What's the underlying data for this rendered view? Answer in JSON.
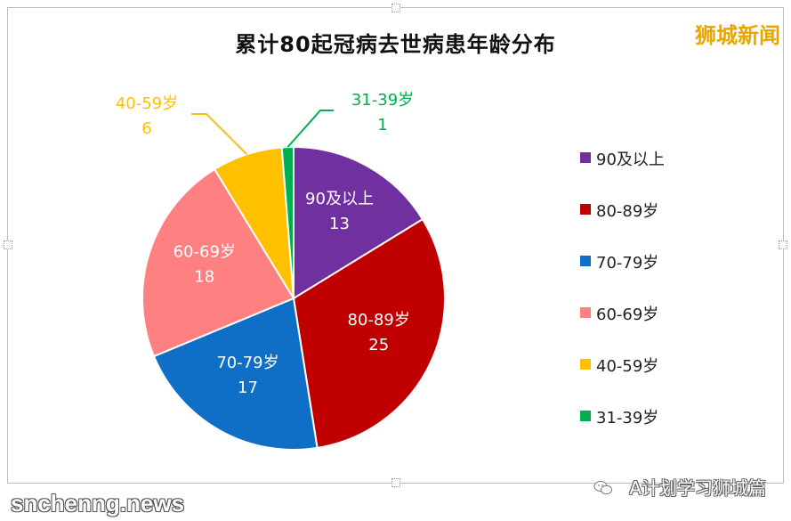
{
  "page": {
    "brand": "狮城新闻",
    "footer_left": "snchenng.news",
    "footer_right": "A计划学习狮城篇"
  },
  "chart_data": {
    "type": "pie",
    "title": "累计80起冠病去世病患年龄分布",
    "slices": [
      {
        "label": "90及以上",
        "value": 13,
        "color": "#7030a0",
        "label_color": "#ffffff"
      },
      {
        "label": "80-89岁",
        "value": 25,
        "color": "#c00000",
        "label_color": "#ffffff"
      },
      {
        "label": "70-79岁",
        "value": 17,
        "color": "#0f6fc6",
        "label_color": "#ffffff"
      },
      {
        "label": "60-69岁",
        "value": 18,
        "color": "#ff8080",
        "label_color": "#ffffff"
      },
      {
        "label": "40-59岁",
        "value": 6,
        "color": "#ffc000",
        "label_color": "#ffc000"
      },
      {
        "label": "31-39岁",
        "value": 1,
        "color": "#00b050",
        "label_color": "#00b050"
      }
    ],
    "legend_position": "right"
  }
}
